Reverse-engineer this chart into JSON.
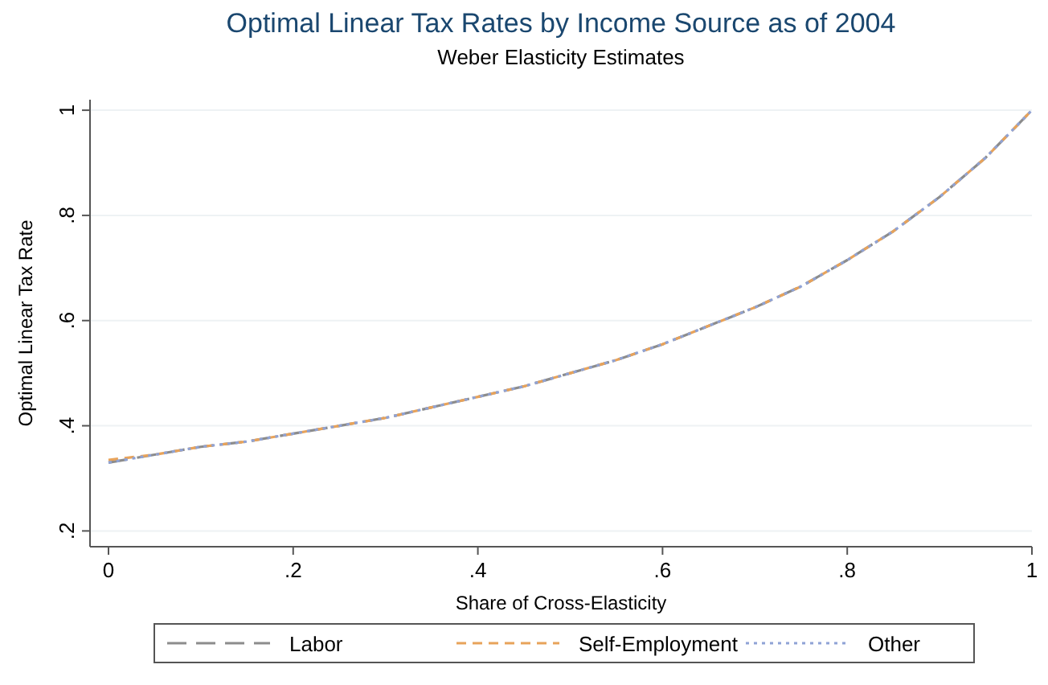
{
  "chart_data": {
    "type": "line",
    "title": "Optimal Linear Tax Rates by Income Source as of 2004",
    "subtitle": "Weber Elasticity Estimates",
    "xlabel": "Share of Cross-Elasticity",
    "ylabel": "Optimal Linear Tax Rate",
    "x": [
      0,
      0.05,
      0.1,
      0.15,
      0.2,
      0.25,
      0.3,
      0.35,
      0.4,
      0.45,
      0.5,
      0.55,
      0.6,
      0.65,
      0.7,
      0.75,
      0.8,
      0.85,
      0.9,
      0.95,
      1
    ],
    "series": [
      {
        "name": "Labor",
        "color": "#8c8c8c",
        "line_style": "longdash",
        "values": [
          0.33,
          0.345,
          0.36,
          0.37,
          0.385,
          0.4,
          0.415,
          0.435,
          0.455,
          0.475,
          0.5,
          0.525,
          0.555,
          0.59,
          0.625,
          0.665,
          0.715,
          0.77,
          0.835,
          0.91,
          1.0
        ]
      },
      {
        "name": "Self-Employment",
        "color": "#e8a35a",
        "line_style": "dashed",
        "values": [
          0.335,
          0.345,
          0.36,
          0.37,
          0.385,
          0.4,
          0.415,
          0.435,
          0.455,
          0.475,
          0.5,
          0.525,
          0.555,
          0.59,
          0.625,
          0.665,
          0.715,
          0.77,
          0.835,
          0.91,
          1.0
        ]
      },
      {
        "name": "Other",
        "color": "#8fa3d6",
        "line_style": "dotted",
        "values": [
          0.33,
          0.345,
          0.36,
          0.37,
          0.385,
          0.4,
          0.415,
          0.435,
          0.455,
          0.475,
          0.5,
          0.525,
          0.555,
          0.59,
          0.625,
          0.665,
          0.715,
          0.77,
          0.835,
          0.91,
          1.0
        ]
      }
    ],
    "xlim": [
      -0.02,
      1.0
    ],
    "ylim": [
      0.17,
      1.02
    ],
    "xticks": [
      0,
      {
        "value": 0.2,
        "label": ".2"
      },
      {
        "value": 0.4,
        "label": ".4"
      },
      {
        "value": 0.6,
        "label": ".6"
      },
      {
        "value": 0.8,
        "label": ".8"
      },
      1
    ],
    "yticks": [
      {
        "value": 0.2,
        "label": ".2"
      },
      {
        "value": 0.4,
        "label": ".4"
      },
      {
        "value": 0.6,
        "label": ".6"
      },
      {
        "value": 0.8,
        "label": ".8"
      },
      1
    ],
    "grid": "y",
    "legend": "bottom",
    "marker": "none"
  }
}
